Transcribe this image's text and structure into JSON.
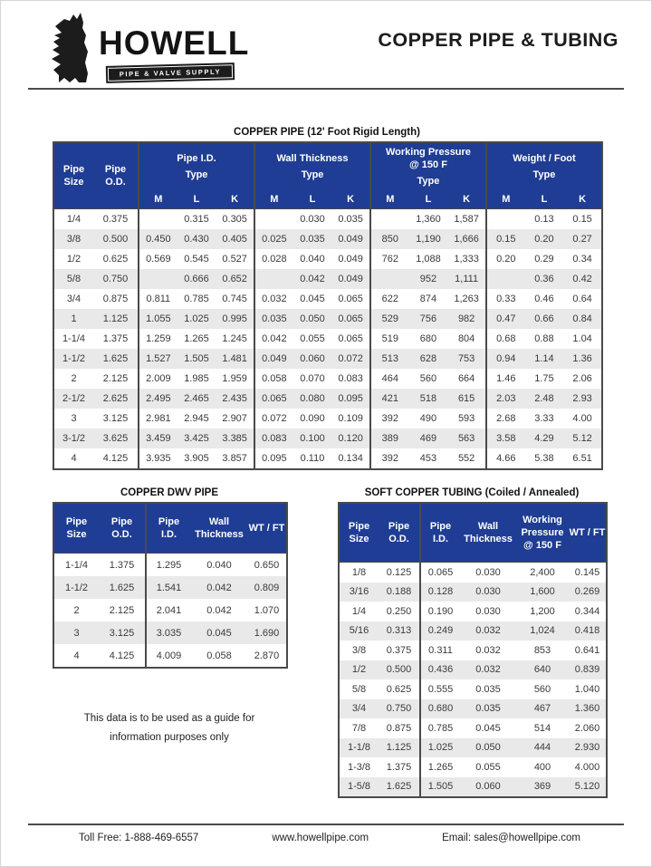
{
  "header": {
    "doc_title": "COPPER PIPE & TUBING"
  },
  "brand": {
    "name": "HOWELL",
    "tagline": "PIPE & VALVE SUPPLY"
  },
  "colors": {
    "header_blue": "#1f3d94",
    "row_alt_gray": "#e9e9e9",
    "border_dark": "#4a4a4a"
  },
  "main_table": {
    "title": "COPPER PIPE (12' Foot Rigid Length)",
    "row_headers": {
      "size": "Pipe\nSize",
      "od": "Pipe\nO.D."
    },
    "groups": [
      {
        "label": "Pipe I.D.",
        "type_label": "Type"
      },
      {
        "label": "Wall Thickness",
        "type_label": "Type"
      },
      {
        "label": "Working Pressure\n@ 150 F",
        "type_label": "Type"
      },
      {
        "label": "Weight / Foot",
        "type_label": "Type"
      }
    ],
    "sub_headers": [
      "M",
      "L",
      "K"
    ],
    "rows": [
      [
        "1/4",
        "0.375",
        "",
        "0.315",
        "0.305",
        "",
        "0.030",
        "0.035",
        "",
        "1,360",
        "1,587",
        "",
        "0.13",
        "0.15"
      ],
      [
        "3/8",
        "0.500",
        "0.450",
        "0.430",
        "0.405",
        "0.025",
        "0.035",
        "0.049",
        "850",
        "1,190",
        "1,666",
        "0.15",
        "0.20",
        "0.27"
      ],
      [
        "1/2",
        "0.625",
        "0.569",
        "0.545",
        "0.527",
        "0.028",
        "0.040",
        "0.049",
        "762",
        "1,088",
        "1,333",
        "0.20",
        "0.29",
        "0.34"
      ],
      [
        "5/8",
        "0.750",
        "",
        "0.666",
        "0.652",
        "",
        "0.042",
        "0.049",
        "",
        "952",
        "1,111",
        "",
        "0.36",
        "0.42"
      ],
      [
        "3/4",
        "0.875",
        "0.811",
        "0.785",
        "0.745",
        "0.032",
        "0.045",
        "0.065",
        "622",
        "874",
        "1,263",
        "0.33",
        "0.46",
        "0.64"
      ],
      [
        "1",
        "1.125",
        "1.055",
        "1.025",
        "0.995",
        "0.035",
        "0.050",
        "0.065",
        "529",
        "756",
        "982",
        "0.47",
        "0.66",
        "0.84"
      ],
      [
        "1-1/4",
        "1.375",
        "1.259",
        "1.265",
        "1.245",
        "0.042",
        "0.055",
        "0.065",
        "519",
        "680",
        "804",
        "0.68",
        "0.88",
        "1.04"
      ],
      [
        "1-1/2",
        "1.625",
        "1.527",
        "1.505",
        "1.481",
        "0.049",
        "0.060",
        "0.072",
        "513",
        "628",
        "753",
        "0.94",
        "1.14",
        "1.36"
      ],
      [
        "2",
        "2.125",
        "2.009",
        "1.985",
        "1.959",
        "0.058",
        "0.070",
        "0.083",
        "464",
        "560",
        "664",
        "1.46",
        "1.75",
        "2.06"
      ],
      [
        "2-1/2",
        "2.625",
        "2.495",
        "2.465",
        "2.435",
        "0.065",
        "0.080",
        "0.095",
        "421",
        "518",
        "615",
        "2.03",
        "2.48",
        "2.93"
      ],
      [
        "3",
        "3.125",
        "2.981",
        "2.945",
        "2.907",
        "0.072",
        "0.090",
        "0.109",
        "392",
        "490",
        "593",
        "2.68",
        "3.33",
        "4.00"
      ],
      [
        "3-1/2",
        "3.625",
        "3.459",
        "3.425",
        "3.385",
        "0.083",
        "0.100",
        "0.120",
        "389",
        "469",
        "563",
        "3.58",
        "4.29",
        "5.12"
      ],
      [
        "4",
        "4.125",
        "3.935",
        "3.905",
        "3.857",
        "0.095",
        "0.110",
        "0.134",
        "392",
        "453",
        "552",
        "4.66",
        "5.38",
        "6.51"
      ]
    ]
  },
  "dwv_table": {
    "title": "COPPER DWV PIPE",
    "headers": [
      "Pipe\nSize",
      "Pipe\nO.D.",
      "Pipe\nI.D.",
      "Wall\nThickness",
      "WT / FT"
    ],
    "rows": [
      [
        "1-1/4",
        "1.375",
        "1.295",
        "0.040",
        "0.650"
      ],
      [
        "1-1/2",
        "1.625",
        "1.541",
        "0.042",
        "0.809"
      ],
      [
        "2",
        "2.125",
        "2.041",
        "0.042",
        "1.070"
      ],
      [
        "3",
        "3.125",
        "3.035",
        "0.045",
        "1.690"
      ],
      [
        "4",
        "4.125",
        "4.009",
        "0.058",
        "2.870"
      ]
    ]
  },
  "soft_table": {
    "title": "SOFT COPPER TUBING (Coiled / Annealed)",
    "headers": [
      "Pipe\nSize",
      "Pipe\nO.D.",
      "Pipe\nI.D.",
      "Wall\nThickness",
      "Working\nPressure\n@ 150 F",
      "WT / FT"
    ],
    "rows": [
      [
        "1/8",
        "0.125",
        "0.065",
        "0.030",
        "2,400",
        "0.145"
      ],
      [
        "3/16",
        "0.188",
        "0.128",
        "0.030",
        "1,600",
        "0.269"
      ],
      [
        "1/4",
        "0.250",
        "0.190",
        "0.030",
        "1,200",
        "0.344"
      ],
      [
        "5/16",
        "0.313",
        "0.249",
        "0.032",
        "1,024",
        "0.418"
      ],
      [
        "3/8",
        "0.375",
        "0.311",
        "0.032",
        "853",
        "0.641"
      ],
      [
        "1/2",
        "0.500",
        "0.436",
        "0.032",
        "640",
        "0.839"
      ],
      [
        "5/8",
        "0.625",
        "0.555",
        "0.035",
        "560",
        "1.040"
      ],
      [
        "3/4",
        "0.750",
        "0.680",
        "0.035",
        "467",
        "1.360"
      ],
      [
        "7/8",
        "0.875",
        "0.785",
        "0.045",
        "514",
        "2.060"
      ],
      [
        "1-1/8",
        "1.125",
        "1.025",
        "0.050",
        "444",
        "2.930"
      ],
      [
        "1-3/8",
        "1.375",
        "1.265",
        "0.055",
        "400",
        "4.000"
      ],
      [
        "1-5/8",
        "1.625",
        "1.505",
        "0.060",
        "369",
        "5.120"
      ]
    ]
  },
  "note": "This data is to be used as a guide for\ninformation purposes only",
  "footer": {
    "toll_free": "Toll Free: 1-888-469-6557",
    "website": "www.howellpipe.com",
    "email": "Email: sales@howellpipe.com"
  }
}
